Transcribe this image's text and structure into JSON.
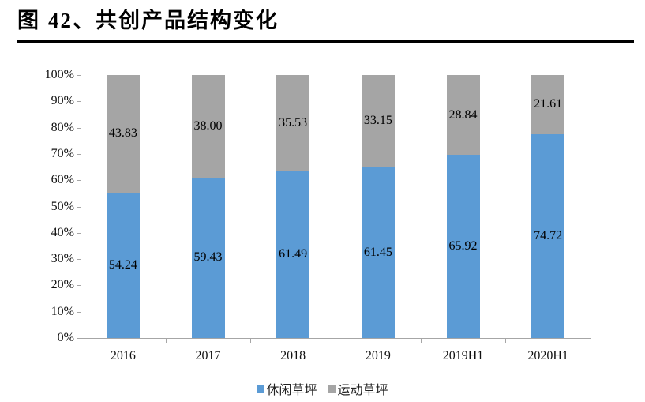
{
  "figure": {
    "prefix": "图",
    "number": "42、",
    "title": "共创产品结构变化"
  },
  "colors": {
    "series1": "#5b9bd5",
    "series2": "#a5a5a5",
    "axis": "#a6a6a6"
  },
  "legend": {
    "items": [
      {
        "label": "休闲草坪",
        "color": "#5b9bd5"
      },
      {
        "label": "运动草坪",
        "color": "#a5a5a5"
      }
    ]
  },
  "y_axis": {
    "ticks": [
      "0%",
      "10%",
      "20%",
      "30%",
      "40%",
      "50%",
      "60%",
      "70%",
      "80%",
      "90%",
      "100%"
    ]
  },
  "chart_data": {
    "type": "bar",
    "stacked": "percent",
    "title": "图 42、共创产品结构变化",
    "xlabel": "",
    "ylabel": "",
    "ylim": [
      0,
      1
    ],
    "y_tick_format": "percent",
    "grid": false,
    "legend_position": "bottom",
    "categories": [
      "2016",
      "2017",
      "2018",
      "2019",
      "2019H1",
      "2020H1"
    ],
    "series": [
      {
        "name": "休闲草坪",
        "color": "#5b9bd5",
        "values": [
          54.24,
          59.43,
          61.49,
          61.45,
          65.92,
          74.72
        ]
      },
      {
        "name": "运动草坪",
        "color": "#a5a5a5",
        "values": [
          43.83,
          38.0,
          35.53,
          33.15,
          28.84,
          21.61
        ]
      }
    ],
    "data_labels": {
      "休闲草坪": [
        "54.24",
        "59.43",
        "61.49",
        "61.45",
        "65.92",
        "74.72"
      ],
      "运动草坪": [
        "43.83",
        "38.00",
        "35.53",
        "33.15",
        "28.84",
        "21.61"
      ]
    }
  }
}
